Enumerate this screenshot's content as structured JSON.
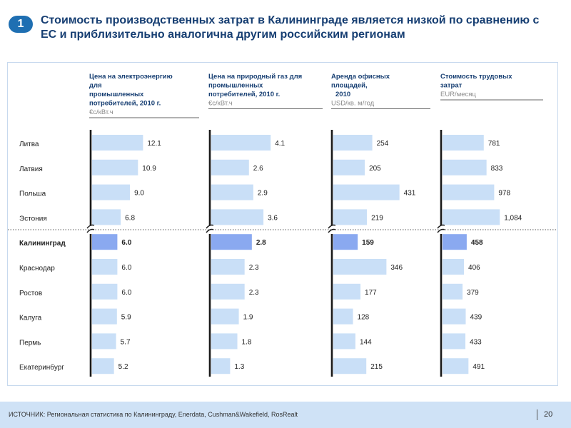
{
  "header": {
    "badge": "1",
    "title": "Стоимость производственных затрат в Калининграде является низкой по сравнению с ЕС и приблизительно аналогична другим российским регионам"
  },
  "footer": {
    "source": "ИСТОЧНИК: Региональная статистика по Калининграду, Enerdata, Cushman&Wakefield, RosRealt",
    "page": "20"
  },
  "colors": {
    "bar": "#c9dff7",
    "highlight": "#8aa9f0",
    "axis": "#1a1a1a",
    "dotted": "#555555"
  },
  "chart_data": {
    "type": "bar",
    "orientation": "horizontal",
    "categories": [
      "Литва",
      "Латвия",
      "Польша",
      "Эстония",
      "Калининград",
      "Краснодар",
      "Ростов",
      "Калуга",
      "Пермь",
      "Екатеринбург"
    ],
    "highlight_category": "Калининград",
    "series": [
      {
        "name_lines": [
          "Цена на электроэнергию",
          "для",
          "промышленных",
          "потребителей, 2010 г."
        ],
        "unit": "€c/кВт.ч",
        "values": [
          12.1,
          10.9,
          9.0,
          6.8,
          6.0,
          6.0,
          6.0,
          5.9,
          5.7,
          5.2
        ],
        "labels": [
          "12.1",
          "10.9",
          "9.0",
          "6.8",
          "6.0",
          "6.0",
          "6.0",
          "5.9",
          "5.7",
          "5.2"
        ]
      },
      {
        "name_lines": [
          "Цена на природный газ для",
          "промышленных",
          "потребителей, 2010 г."
        ],
        "unit": "€c/кВт.ч",
        "values": [
          4.1,
          2.6,
          2.9,
          3.6,
          2.8,
          2.3,
          2.3,
          1.9,
          1.8,
          1.3
        ],
        "labels": [
          "4.1",
          "2.6",
          "2.9",
          "3.6",
          "2.8",
          "2.3",
          "2.3",
          "1.9",
          "1.8",
          "1.3"
        ]
      },
      {
        "name_lines": [
          "Аренда офисных",
          "площадей,",
          "2010"
        ],
        "unit": "USD/кв. м/год",
        "values": [
          254,
          205,
          431,
          219,
          159,
          346,
          177,
          128,
          144,
          215
        ],
        "labels": [
          "254",
          "205",
          "431",
          "219",
          "159",
          "346",
          "177",
          "128",
          "144",
          "215"
        ]
      },
      {
        "name_lines": [
          "Стоимость трудовых",
          "затрат"
        ],
        "unit": "EUR/месяц",
        "values": [
          781,
          833,
          978,
          1084,
          458,
          406,
          379,
          439,
          433,
          491
        ],
        "labels": [
          "781",
          "833",
          "978",
          "1,084",
          "458",
          "406",
          "379",
          "439",
          "433",
          "491"
        ]
      }
    ]
  }
}
